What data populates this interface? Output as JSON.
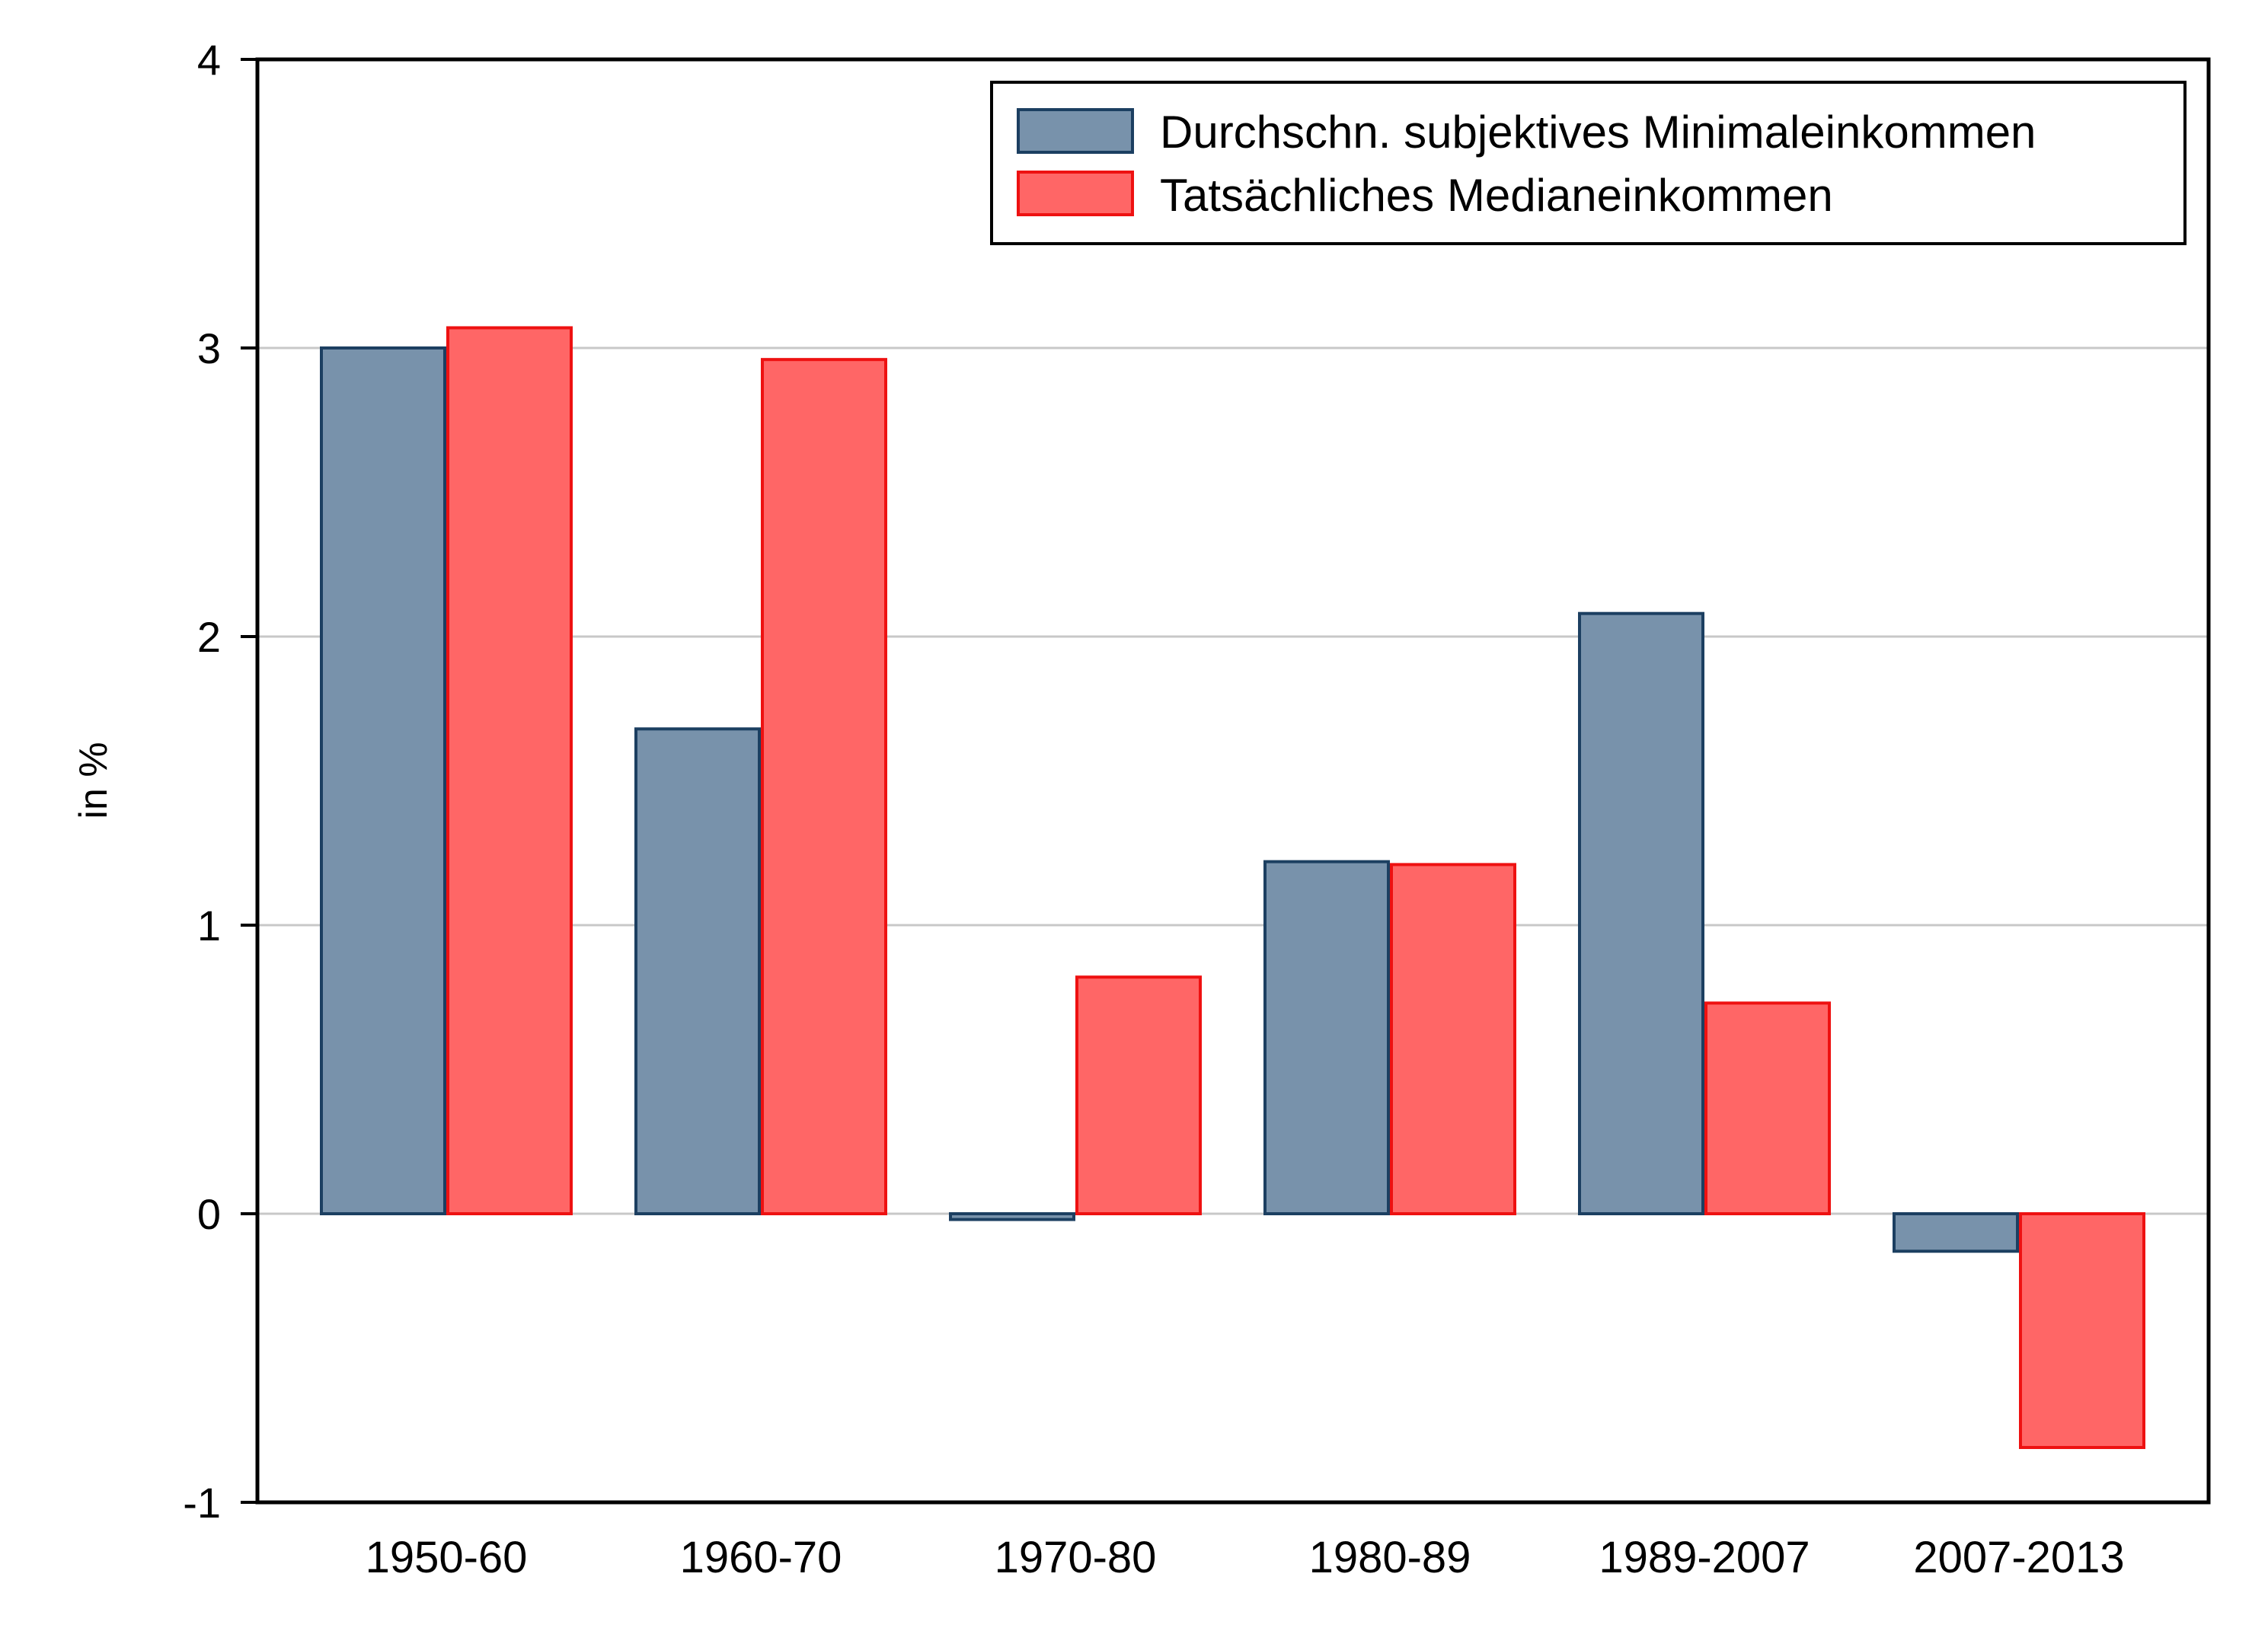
{
  "chart_data": {
    "type": "bar",
    "title": "",
    "xlabel": "",
    "ylabel": "in %",
    "ylim": [
      -1,
      4
    ],
    "yticks": [
      "-1",
      "0",
      "1",
      "2",
      "3",
      "4"
    ],
    "grid": true,
    "legend_position": "top-right",
    "categories": [
      "1950-60",
      "1960-70",
      "1970-80",
      "1980-89",
      "1989-2007",
      "2007-2013"
    ],
    "series": [
      {
        "name": "Durchschn. subjektives Minimaleinkommen",
        "values": [
          3.0,
          1.68,
          -0.02,
          1.22,
          2.08,
          -0.13
        ],
        "fill": "#7892ab",
        "stroke": "#1c3f61"
      },
      {
        "name": "Tatsächliches Medianeinkommen",
        "values": [
          3.07,
          2.96,
          0.82,
          1.21,
          0.73,
          -0.81
        ],
        "fill": "#ff6666",
        "stroke": "#ee1111"
      }
    ]
  }
}
